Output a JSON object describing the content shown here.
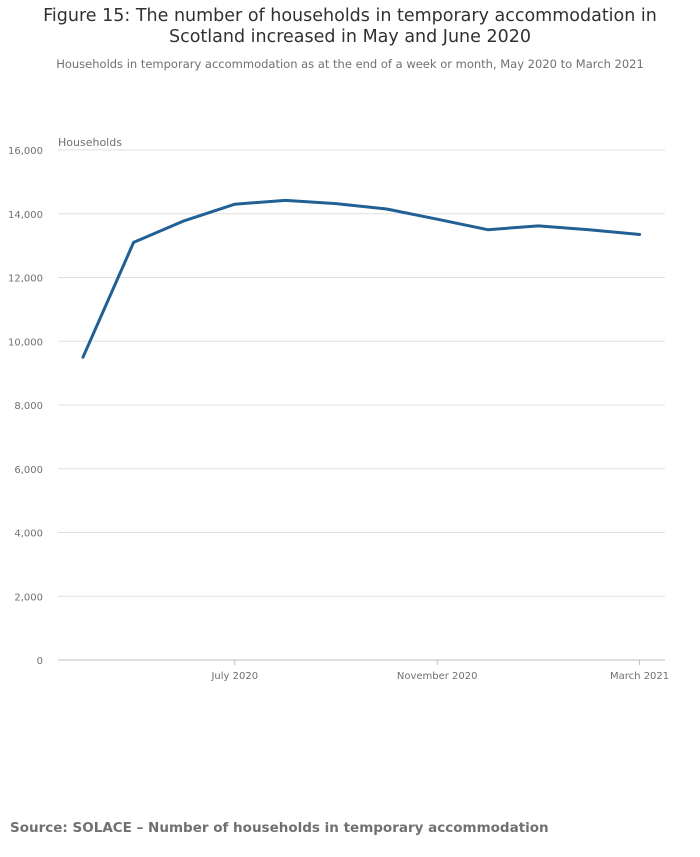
{
  "title_line1": "Figure 15: The number of households in temporary accommodation in",
  "title_line2": "Scotland increased in May and June 2020",
  "subtitle": "Households in temporary accommodation as at the end of a week or month, May 2020 to March 2021",
  "source": "Source: SOLACE – Number of households in temporary accommodation",
  "colors": {
    "line": "#206095",
    "grid": "#e0e0e0",
    "axis": "#bebebe"
  },
  "chart_data": {
    "type": "line",
    "title": "Figure 15: The number of households in temporary accommodation in Scotland increased in May and June 2020",
    "subtitle": "Households in temporary accommodation as at the end of a week or month, May 2020 to March 2021",
    "ylabel": "Households",
    "xlabel": "",
    "ylim": [
      0,
      16000
    ],
    "yticks": [
      0,
      2000,
      4000,
      6000,
      8000,
      10000,
      12000,
      14000,
      16000
    ],
    "ytick_labels": [
      "0",
      "2,000",
      "4,000",
      "6,000",
      "8,000",
      "10,000",
      "12,000",
      "14,000",
      "16,000"
    ],
    "xticks": [
      "July 2020",
      "November 2020",
      "March 2021"
    ],
    "grid": true,
    "x": [
      "May 2020",
      "May 2020",
      "June 2020",
      "July 2020",
      "August 2020",
      "September 2020",
      "October 2020",
      "November 2020",
      "December 2020",
      "January 2021",
      "February 2021",
      "March 2021"
    ],
    "series": [
      {
        "values": [
          9500,
          13100,
          13780,
          14300,
          14420,
          14320,
          14150,
          13830,
          13500,
          13620,
          13500,
          13350
        ]
      }
    ]
  }
}
